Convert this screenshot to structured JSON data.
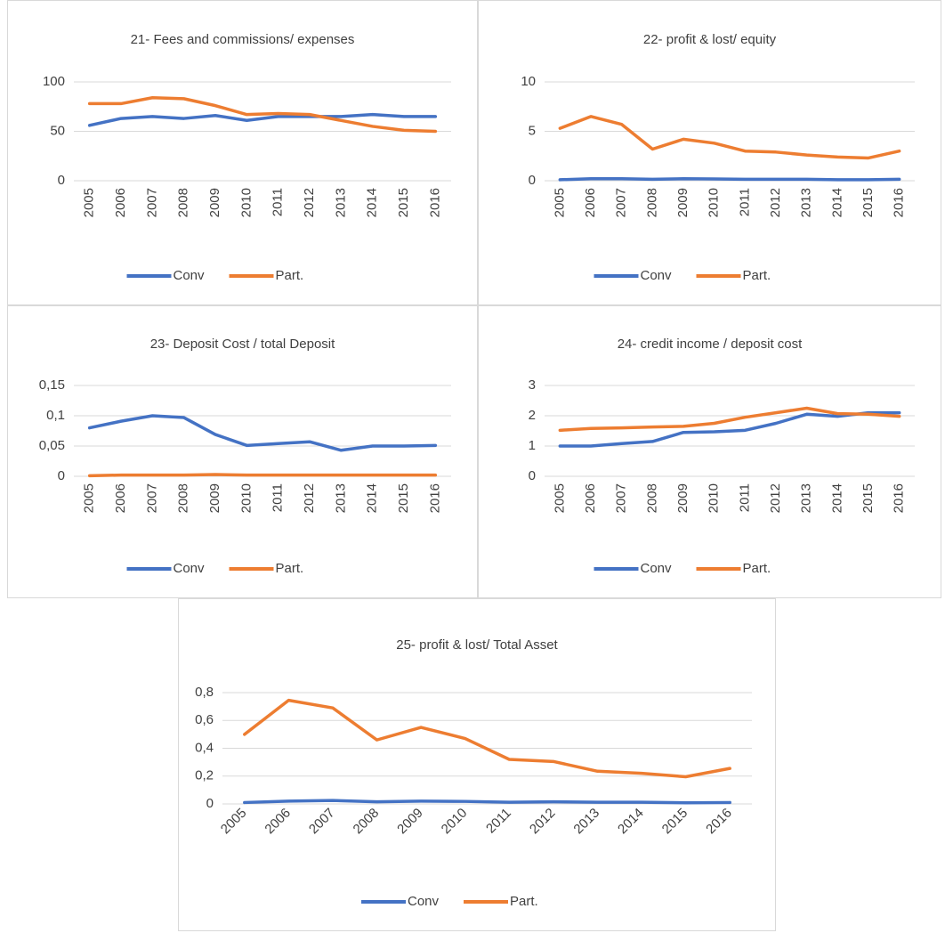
{
  "chart_data": [
    {
      "type": "line",
      "title": "21- Fees and commissions/ expenses",
      "categories": [
        "2005",
        "2006",
        "2007",
        "2008",
        "2009",
        "2010",
        "2011",
        "2012",
        "2013",
        "2014",
        "2015",
        "2016"
      ],
      "series": [
        {
          "name": "Conv",
          "color": "#4472c4",
          "values": [
            56,
            63,
            65,
            63,
            66,
            61,
            65,
            65,
            65,
            67,
            65,
            65
          ]
        },
        {
          "name": "Part.",
          "color": "#ed7d31",
          "values": [
            78,
            78,
            84,
            83,
            76,
            67,
            68,
            67,
            61,
            55,
            51,
            50
          ]
        }
      ],
      "ylim": [
        0,
        100
      ],
      "yticks": [
        0,
        50,
        100
      ],
      "grid": true,
      "legend": "bottom"
    },
    {
      "type": "line",
      "title": "22- profit & lost/ equity",
      "categories": [
        "2005",
        "2006",
        "2007",
        "2008",
        "2009",
        "2010",
        "2011",
        "2012",
        "2013",
        "2014",
        "2015",
        "2016"
      ],
      "series": [
        {
          "name": "Conv",
          "color": "#4472c4",
          "values": [
            0.1,
            0.2,
            0.2,
            0.15,
            0.2,
            0.18,
            0.15,
            0.15,
            0.15,
            0.1,
            0.1,
            0.15
          ]
        },
        {
          "name": "Part.",
          "color": "#ed7d31",
          "values": [
            5.3,
            6.5,
            5.7,
            3.2,
            4.2,
            3.8,
            3.0,
            2.9,
            2.6,
            2.4,
            2.3,
            3.0
          ]
        }
      ],
      "ylim": [
        0,
        10
      ],
      "yticks": [
        0,
        5,
        10
      ],
      "grid": true,
      "legend": "bottom"
    },
    {
      "type": "line",
      "title": "23- Deposit Cost / total Deposit",
      "categories": [
        "2005",
        "2006",
        "2007",
        "2008",
        "2009",
        "2010",
        "2011",
        "2012",
        "2013",
        "2014",
        "2015",
        "2016"
      ],
      "series": [
        {
          "name": "Conv",
          "color": "#4472c4",
          "values": [
            0.08,
            0.091,
            0.1,
            0.097,
            0.069,
            0.051,
            0.054,
            0.057,
            0.043,
            0.05,
            0.05,
            0.051
          ]
        },
        {
          "name": "Part.",
          "color": "#ed7d31",
          "values": [
            0.001,
            0.002,
            0.002,
            0.002,
            0.003,
            0.002,
            0.002,
            0.002,
            0.002,
            0.002,
            0.002,
            0.002
          ]
        }
      ],
      "ylim": [
        0,
        0.15
      ],
      "yticks": [
        0,
        {
          "value": 0.05,
          "label": "0,05"
        },
        {
          "value": 0.1,
          "label": "0,1"
        },
        {
          "value": 0.15,
          "label": "0,15"
        }
      ],
      "grid": true,
      "legend": "bottom"
    },
    {
      "type": "line",
      "title": "24- credit income / deposit cost",
      "categories": [
        "2005",
        "2006",
        "2007",
        "2008",
        "2009",
        "2010",
        "2011",
        "2012",
        "2013",
        "2014",
        "2015",
        "2016"
      ],
      "series": [
        {
          "name": "Conv",
          "color": "#4472c4",
          "values": [
            1.0,
            1.0,
            1.08,
            1.15,
            1.45,
            1.47,
            1.52,
            1.75,
            2.05,
            1.98,
            2.1,
            2.1
          ]
        },
        {
          "name": "Part.",
          "color": "#ed7d31",
          "values": [
            1.52,
            1.58,
            1.6,
            1.63,
            1.65,
            1.75,
            1.95,
            2.1,
            2.25,
            2.07,
            2.05,
            1.98
          ]
        }
      ],
      "ylim": [
        0,
        3
      ],
      "yticks": [
        0,
        1,
        2,
        3
      ],
      "grid": true,
      "legend": "bottom"
    },
    {
      "type": "line",
      "title": "25- profit & lost/ Total Asset",
      "categories": [
        "2005",
        "2006",
        "2007",
        "2008",
        "2009",
        "2010",
        "2011",
        "2012",
        "2013",
        "2014",
        "2015",
        "2016"
      ],
      "series": [
        {
          "name": "Conv",
          "color": "#4472c4",
          "values": [
            0.01,
            0.02,
            0.025,
            0.015,
            0.02,
            0.018,
            0.012,
            0.015,
            0.012,
            0.012,
            0.008,
            0.01
          ]
        },
        {
          "name": "Part.",
          "color": "#ed7d31",
          "values": [
            0.5,
            0.745,
            0.69,
            0.46,
            0.55,
            0.47,
            0.32,
            0.305,
            0.235,
            0.22,
            0.195,
            0.255
          ]
        }
      ],
      "ylim": [
        0,
        0.8
      ],
      "yticks": [
        0,
        {
          "value": 0.2,
          "label": "0,2"
        },
        {
          "value": 0.4,
          "label": "0,4"
        },
        {
          "value": 0.6,
          "label": "0,6"
        },
        {
          "value": 0.8,
          "label": "0,8"
        }
      ],
      "grid": true,
      "legend": "bottom"
    }
  ]
}
